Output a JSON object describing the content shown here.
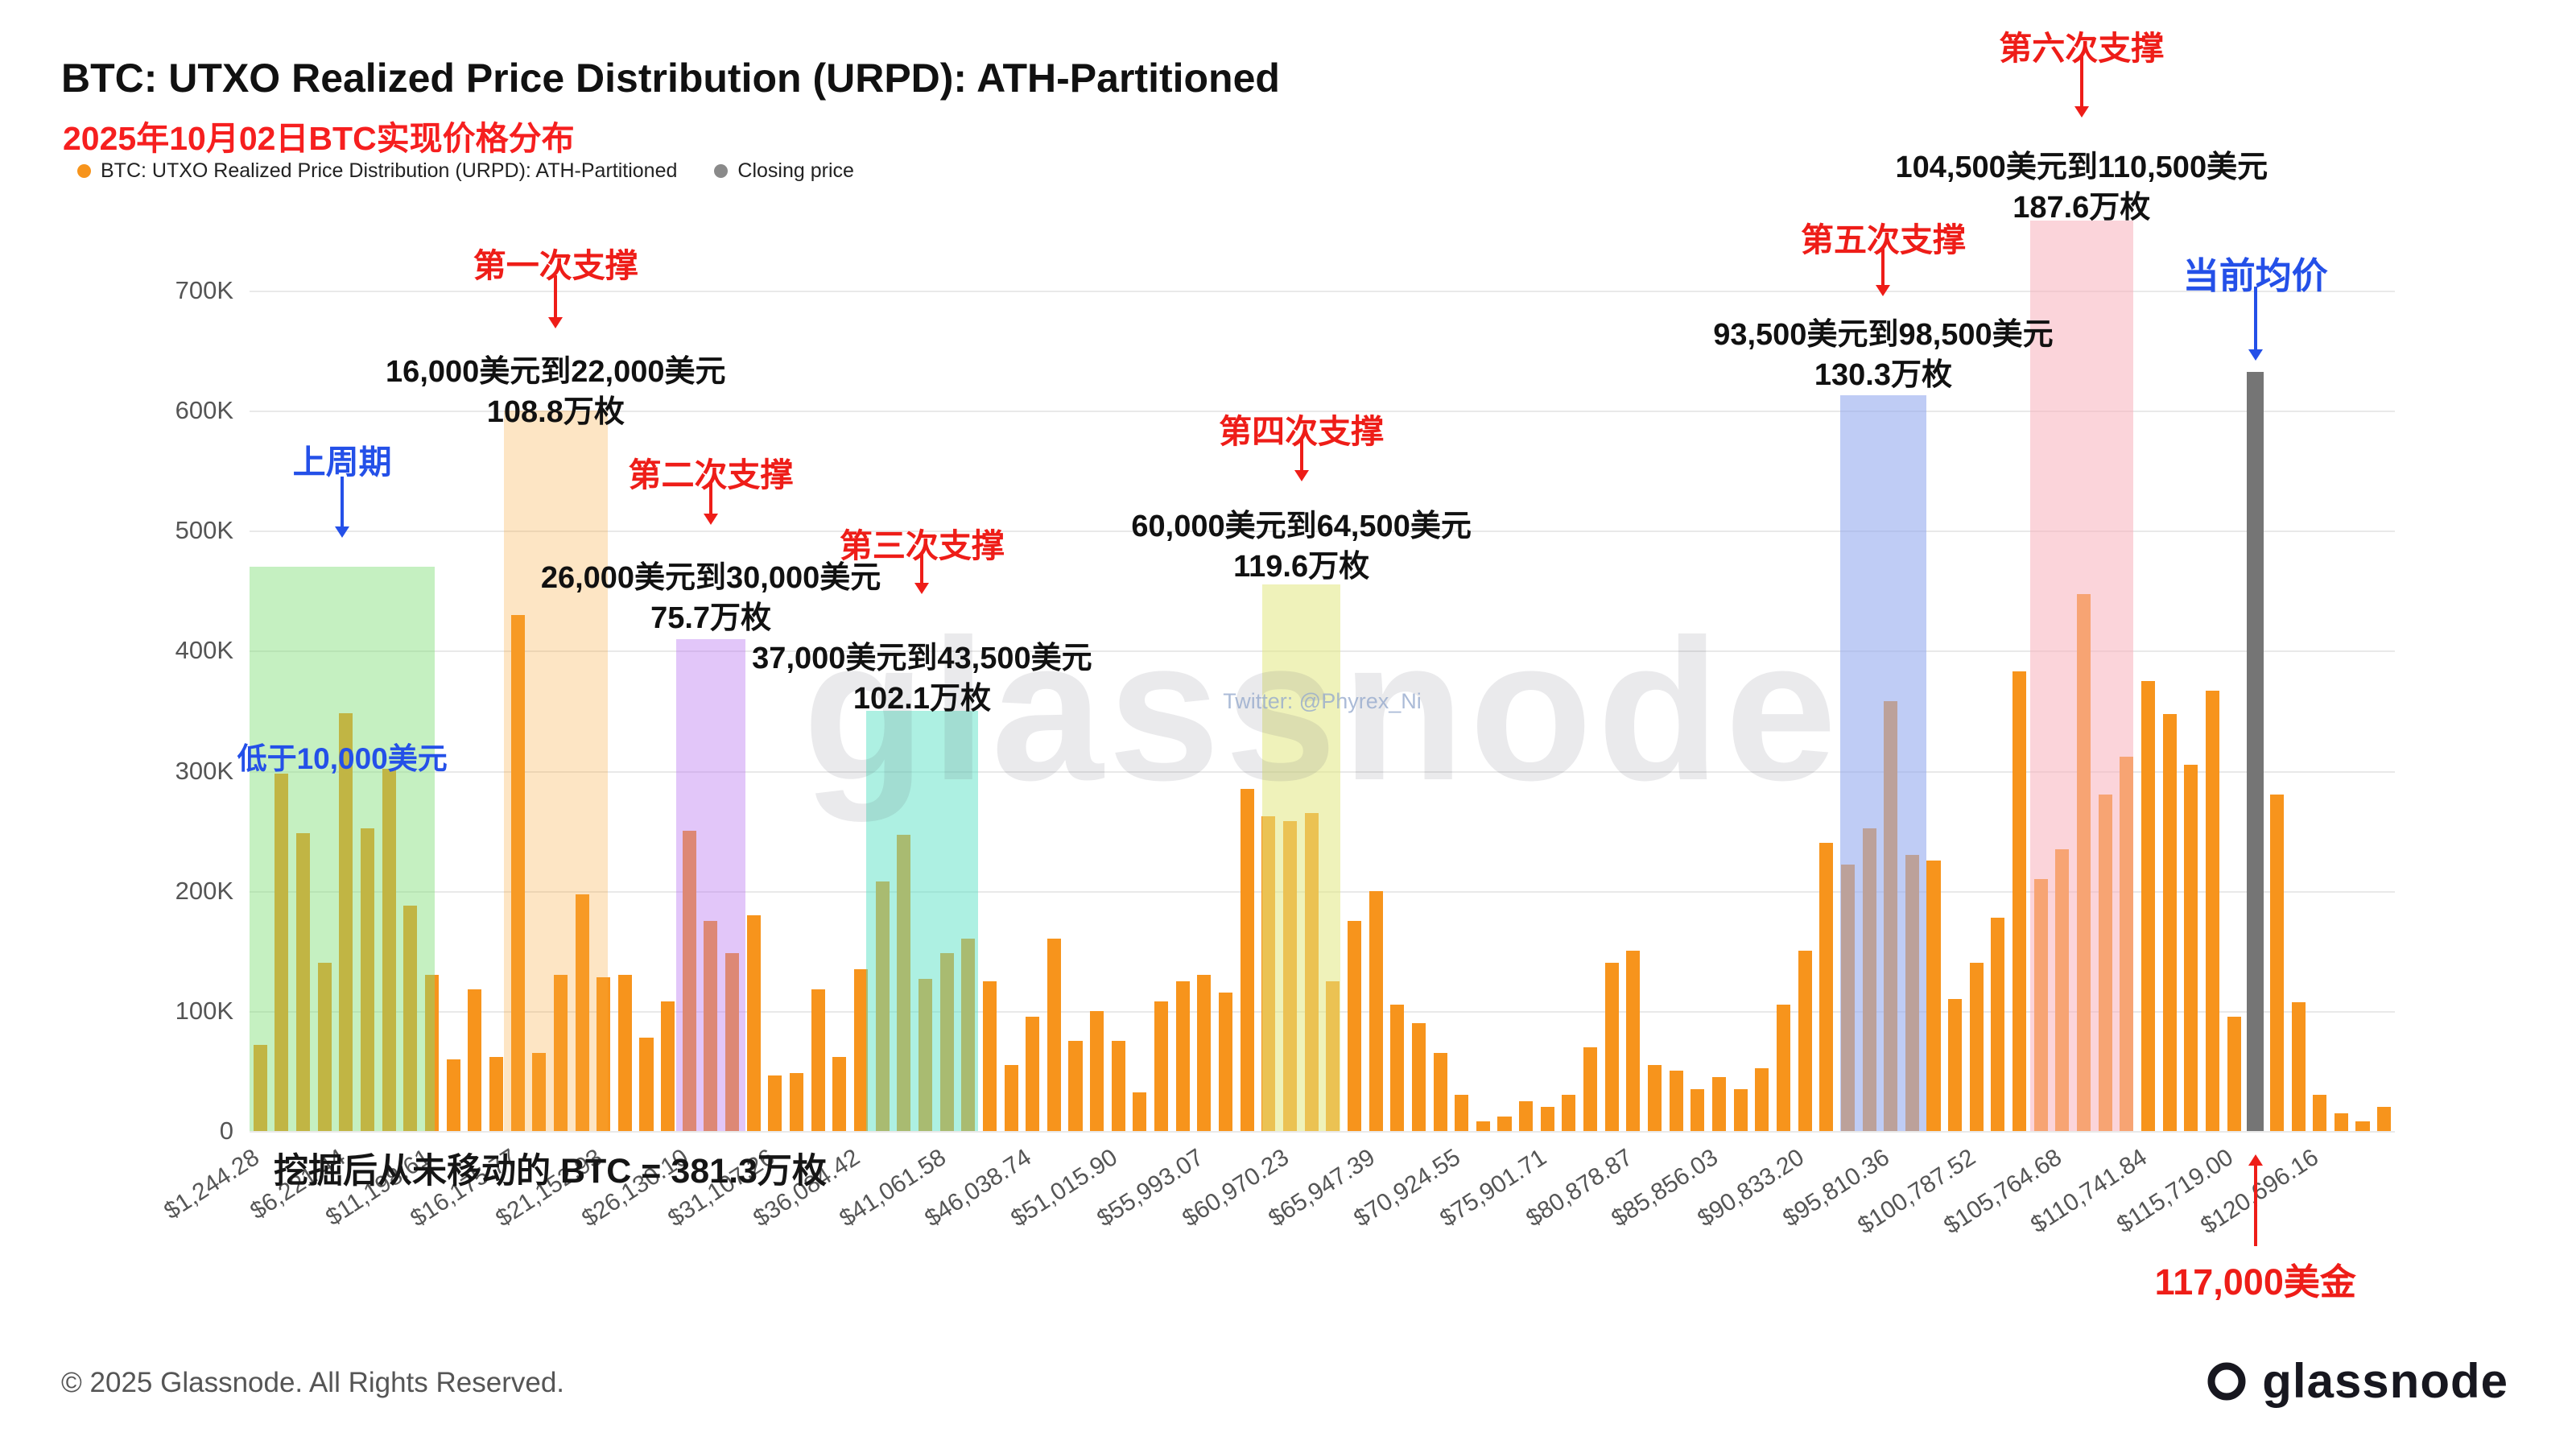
{
  "header": {
    "title": "BTC: UTXO Realized Price Distribution (URPD): ATH-Partitioned",
    "subtitle": "2025年10月02日BTC实现价格分布",
    "legend": [
      {
        "label": "BTC: UTXO Realized Price Distribution (URPD): ATH-Partitioned",
        "color": "#f7941c"
      },
      {
        "label": "Closing price",
        "color": "#8a8a8a"
      }
    ]
  },
  "chart_data": {
    "type": "bar",
    "title": "BTC: UTXO Realized Price Distribution (URPD): ATH-Partitioned",
    "values_unit": "K (thousand BTC)",
    "x_start": 1244.28,
    "bucket_width": 1244.29,
    "num_buckets": 100,
    "bar_color": "#f7941c",
    "ylim_k": [
      0,
      761
    ],
    "grid": true,
    "y_ticks": [
      {
        "v": 0,
        "label": "0"
      },
      {
        "v": 100,
        "label": "100K"
      },
      {
        "v": 200,
        "label": "200K"
      },
      {
        "v": 300,
        "label": "300K"
      },
      {
        "v": 400,
        "label": "400K"
      },
      {
        "v": 500,
        "label": "500K"
      },
      {
        "v": 600,
        "label": "600K"
      },
      {
        "v": 700,
        "label": "700K"
      }
    ],
    "x_tick_step": 4977.16,
    "x_tick_labels": [
      "$1,244.28",
      "$6,221.44",
      "$11,198.61",
      "$16,175.77",
      "$21,152.93",
      "$26,130.10",
      "$31,107.26",
      "$36,084.42",
      "$41,061.58",
      "$46,038.74",
      "$51,015.90",
      "$55,993.07",
      "$60,970.23",
      "$65,947.39",
      "$70,924.55",
      "$75,901.71",
      "$80,878.87",
      "$85,856.03",
      "$90,833.20",
      "$95,810.36",
      "$100,787.52",
      "$105,764.68",
      "$110,741.84",
      "$115,719.00",
      "$120,696.16"
    ],
    "values_k": [
      72,
      298,
      248,
      140,
      348,
      252,
      302,
      188,
      130,
      60,
      118,
      62,
      430,
      65,
      130,
      197,
      128,
      130,
      78,
      108,
      250,
      175,
      148,
      180,
      46,
      48,
      118,
      62,
      135,
      208,
      247,
      127,
      148,
      160,
      125,
      55,
      95,
      160,
      75,
      100,
      75,
      32,
      108,
      125,
      130,
      115,
      285,
      262,
      258,
      265,
      125,
      175,
      200,
      105,
      90,
      65,
      30,
      8,
      12,
      25,
      20,
      30,
      70,
      140,
      150,
      55,
      50,
      35,
      45,
      35,
      52,
      105,
      150,
      240,
      222,
      252,
      358,
      230,
      225,
      110,
      140,
      178,
      383,
      210,
      235,
      447,
      280,
      312,
      375,
      347,
      305,
      367,
      95,
      0,
      280,
      107,
      30,
      15,
      8,
      20
    ],
    "closing_price": {
      "bucket": 93,
      "height_k": 632,
      "color": "#757575",
      "legend_label": "Closing price",
      "annotation_top": "当前均价",
      "annotation_top_color": "#2450e8",
      "annotation_bottom": "117,000美金",
      "annotation_bottom_color": "#ee1d18"
    },
    "regions": [
      {
        "id": "prev-cycle",
        "label": "上周期",
        "label_color": "#2450e8",
        "inner_label": "低于10,000美元",
        "from": 1244.28,
        "to": 12000,
        "top_k": 470,
        "fill": "rgba(126,222,118,0.45)",
        "ann": {
          "title_y": 540,
          "arrow": [
            592,
            668
          ],
          "inner_y": 912
        }
      },
      {
        "id": "support-1",
        "label": "第一次支撑",
        "label_color": "#ee1d18",
        "range_text": "16,000美元到22,000美元",
        "amount_text": "108.8万枚",
        "from": 16000,
        "to": 22000,
        "top_k": 600,
        "fill": "rgba(247,170,60,0.30)",
        "ann": {
          "title_y": 296,
          "arrow": [
            342,
            408
          ],
          "text_y": 430
        }
      },
      {
        "id": "support-2",
        "label": "第二次支撑",
        "label_color": "#ee1d18",
        "range_text": "26,000美元到30,000美元",
        "amount_text": "75.7万枚",
        "from": 26000,
        "to": 30000,
        "top_k": 410,
        "fill": "rgba(186,120,240,0.42)",
        "ann": {
          "title_y": 556,
          "arrow": [
            600,
            652
          ],
          "text_y": 686
        }
      },
      {
        "id": "support-3",
        "label": "第三次支撑",
        "label_color": "#ee1d18",
        "range_text": "37,000美元到43,500美元",
        "amount_text": "102.1万枚",
        "from": 37000,
        "to": 43500,
        "top_k": 350,
        "fill": "rgba(92,226,198,0.50)",
        "ann": {
          "title_y": 644,
          "arrow": [
            686,
            738
          ],
          "text_y": 786
        }
      },
      {
        "id": "support-4",
        "label": "第四次支撑",
        "label_color": "#ee1d18",
        "range_text": "60,000美元到64,500美元",
        "amount_text": "119.6万枚",
        "from": 60000,
        "to": 64500,
        "top_k": 455,
        "fill": "rgba(226,232,130,0.55)",
        "ann": {
          "title_y": 502,
          "arrow": [
            544,
            598
          ],
          "text_y": 622
        }
      },
      {
        "id": "support-5",
        "label": "第五次支撑",
        "label_color": "#ee1d18",
        "range_text": "93,500美元到98,500美元",
        "amount_text": "130.3万枚",
        "from": 93500,
        "to": 98500,
        "top_k": 613,
        "fill": "rgba(148,170,238,0.60)",
        "ann": {
          "title_y": 264,
          "arrow": [
            306,
            368
          ],
          "text_y": 384
        }
      },
      {
        "id": "support-6",
        "label": "第六次支撑",
        "label_color": "#ee1d18",
        "range_text": "104,500美元到110,500美元",
        "amount_text": "187.6万枚",
        "from": 104500,
        "to": 110500,
        "top_k": 758,
        "fill": "rgba(247,176,188,0.55)",
        "ann": {
          "title_y": 26,
          "arrow": [
            70,
            146
          ],
          "text_y": 176
        }
      }
    ],
    "annotations": {
      "mined_note": "挖掘后从未移动的 BTC = 381.3万枚"
    }
  },
  "watermark": {
    "main": "glassnode",
    "sub": "Twitter: @Phyrex_Ni"
  },
  "footer": {
    "copyright": "© 2025 Glassnode. All Rights Reserved.",
    "brand": "glassnode"
  }
}
